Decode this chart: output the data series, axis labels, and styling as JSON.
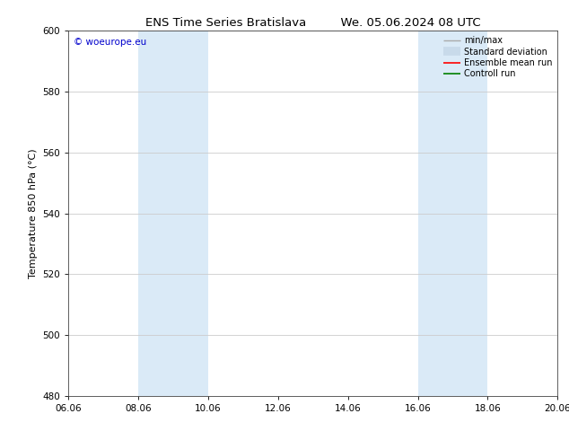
{
  "title_left": "ENS Time Series Bratislava",
  "title_right": "We. 05.06.2024 08 UTC",
  "ylabel": "Temperature 850 hPa (°C)",
  "ylim": [
    480,
    600
  ],
  "yticks": [
    480,
    500,
    520,
    540,
    560,
    580,
    600
  ],
  "x_min": 0.0,
  "x_max": 15.0,
  "xtick_labels": [
    "06.06",
    "08.06",
    "10.06",
    "12.06",
    "14.06",
    "16.06",
    "18.06",
    "20.06"
  ],
  "xtick_positions": [
    0.0,
    2.142857,
    4.285714,
    6.428571,
    8.571429,
    10.714286,
    12.857143,
    15.0
  ],
  "shaded_bands": [
    {
      "x_start": 2.142857,
      "x_end": 4.285714,
      "color": "#daeaf7"
    },
    {
      "x_start": 10.714286,
      "x_end": 12.857143,
      "color": "#daeaf7"
    }
  ],
  "watermark_text": "© woeurope.eu",
  "watermark_color": "#0000cc",
  "legend_entries": [
    {
      "label": "min/max",
      "color": "#aaaaaa",
      "lw": 1.0
    },
    {
      "label": "Standard deviation",
      "color": "#c8daea",
      "lw": 7.0
    },
    {
      "label": "Ensemble mean run",
      "color": "#ff0000",
      "lw": 1.2
    },
    {
      "label": "Controll run",
      "color": "#008000",
      "lw": 1.2
    }
  ],
  "bg_color": "#ffffff",
  "grid_color": "#cccccc",
  "title_fontsize": 9.5,
  "axis_label_fontsize": 8.0,
  "tick_fontsize": 7.5,
  "watermark_fontsize": 7.5,
  "legend_fontsize": 7.0
}
